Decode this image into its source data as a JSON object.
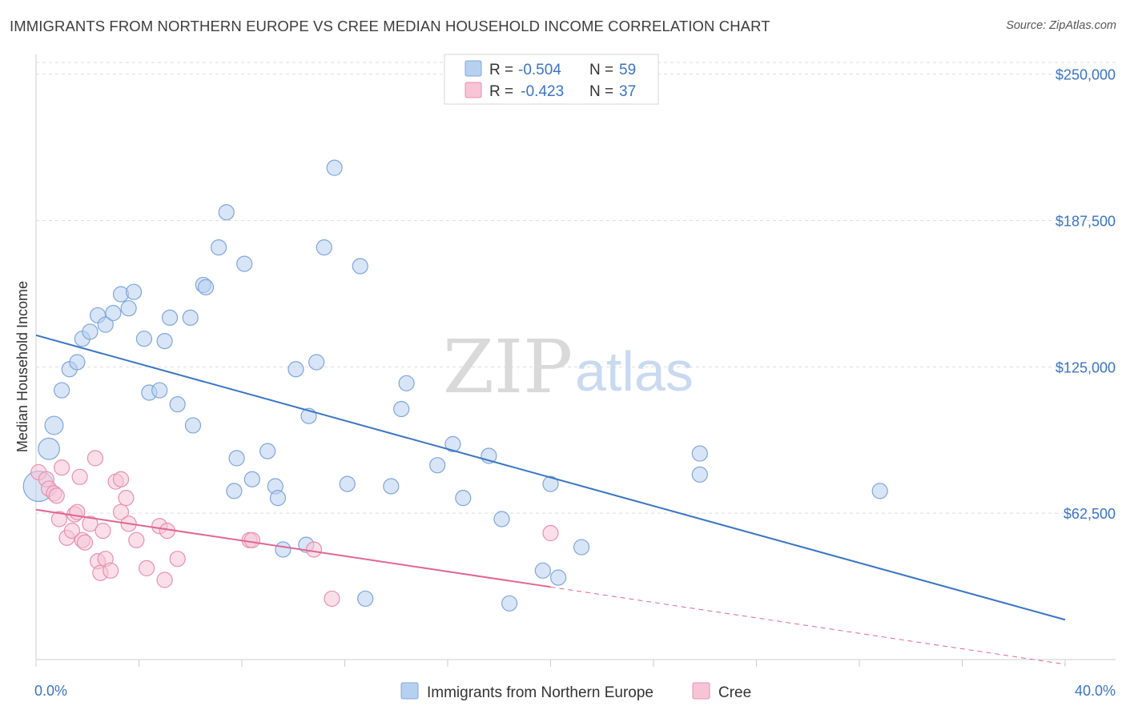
{
  "header": {
    "title": "IMMIGRANTS FROM NORTHERN EUROPE VS CREE MEDIAN HOUSEHOLD INCOME CORRELATION CHART",
    "source": "Source: ZipAtlas.com"
  },
  "watermark": {
    "zip": "ZIP",
    "atlas": "atlas"
  },
  "legend_top": {
    "rows": [
      {
        "r_label": "R = ",
        "r_value": "-0.504",
        "n_label": "N = ",
        "n_value": "59"
      },
      {
        "r_label": "R = ",
        "r_value": " -0.423",
        "n_label": "N = ",
        "n_value": "37"
      }
    ]
  },
  "legend_bottom": {
    "items": [
      "Immigrants from Northern Europe",
      "Cree"
    ]
  },
  "colors": {
    "blue": "#3a74c4",
    "blue_fill": "#b8d0f0",
    "pink": "#e06690",
    "pink_fill": "#f7c4d5",
    "grid": "#dddddd"
  },
  "chart_data": {
    "type": "scatter",
    "title": "IMMIGRANTS FROM NORTHERN EUROPE VS CREE MEDIAN HOUSEHOLD INCOME CORRELATION CHART",
    "xlabel": "",
    "ylabel": "Median Household Income",
    "xlim": [
      0,
      40
    ],
    "ylim": [
      0,
      255000
    ],
    "x_tick_labels": [
      "0.0%",
      "40.0%"
    ],
    "y_ticks": [
      62500,
      125000,
      187500,
      250000
    ],
    "y_tick_labels": [
      "$62,500",
      "$125,000",
      "$187,500",
      "$250,000"
    ],
    "grid": true,
    "series": [
      {
        "name": "Immigrants from Northern Europe",
        "r": -0.504,
        "n": 59,
        "trend": {
          "x0": 0,
          "y0": 138500,
          "x1": 40,
          "y1": 17000
        },
        "points": [
          [
            0.1,
            74000,
            2.0
          ],
          [
            0.5,
            90000,
            1.4
          ],
          [
            0.7,
            100000,
            1.2
          ],
          [
            1.0,
            115000,
            1
          ],
          [
            1.3,
            124000,
            1
          ],
          [
            1.6,
            127000,
            1
          ],
          [
            1.8,
            137000,
            1
          ],
          [
            2.1,
            140000,
            1
          ],
          [
            2.4,
            147000,
            1
          ],
          [
            2.7,
            143000,
            1
          ],
          [
            3.0,
            148000,
            1
          ],
          [
            3.3,
            156000,
            1
          ],
          [
            3.6,
            150000,
            1
          ],
          [
            3.8,
            157000,
            1
          ],
          [
            4.2,
            137000,
            1
          ],
          [
            4.4,
            114000,
            1
          ],
          [
            4.8,
            115000,
            1
          ],
          [
            5.0,
            136000,
            1
          ],
          [
            5.2,
            146000,
            1
          ],
          [
            5.5,
            109000,
            1
          ],
          [
            6.0,
            146000,
            1
          ],
          [
            6.1,
            100000,
            1
          ],
          [
            6.5,
            160000,
            1
          ],
          [
            6.6,
            159000,
            1
          ],
          [
            7.1,
            176000,
            1
          ],
          [
            7.4,
            191000,
            1
          ],
          [
            7.7,
            72000,
            1
          ],
          [
            7.8,
            86000,
            1
          ],
          [
            8.1,
            169000,
            1
          ],
          [
            8.4,
            77000,
            1
          ],
          [
            9.0,
            89000,
            1
          ],
          [
            9.3,
            74000,
            1
          ],
          [
            9.4,
            69000,
            1
          ],
          [
            9.6,
            47000,
            1
          ],
          [
            10.1,
            124000,
            1
          ],
          [
            10.5,
            49000,
            1
          ],
          [
            10.6,
            104000,
            1
          ],
          [
            10.9,
            127000,
            1
          ],
          [
            11.2,
            176000,
            1
          ],
          [
            11.6,
            210000,
            1
          ],
          [
            12.1,
            75000,
            1
          ],
          [
            12.6,
            168000,
            1
          ],
          [
            12.8,
            26000,
            1
          ],
          [
            13.8,
            74000,
            1
          ],
          [
            14.2,
            107000,
            1
          ],
          [
            14.4,
            118000,
            1
          ],
          [
            15.6,
            83000,
            1
          ],
          [
            16.2,
            92000,
            1
          ],
          [
            16.6,
            69000,
            1
          ],
          [
            17.6,
            87000,
            1
          ],
          [
            18.1,
            60000,
            1
          ],
          [
            18.4,
            24000,
            1
          ],
          [
            19.7,
            38000,
            1
          ],
          [
            20.0,
            75000,
            1
          ],
          [
            20.3,
            35000,
            1
          ],
          [
            21.2,
            48000,
            1
          ],
          [
            25.8,
            79000,
            1
          ],
          [
            25.8,
            88000,
            1
          ],
          [
            32.8,
            72000,
            1
          ]
        ]
      },
      {
        "name": "Cree",
        "r": -0.423,
        "n": 37,
        "trend": {
          "x0": 0,
          "y0": 64000,
          "x1": 20,
          "y1": 31000
        },
        "trend_dashed": {
          "x0": 20,
          "y0": 31000,
          "x1": 40,
          "y1": -2000
        },
        "points": [
          [
            0.1,
            80000,
            1
          ],
          [
            0.4,
            77000,
            1
          ],
          [
            0.5,
            73000,
            1
          ],
          [
            0.7,
            71000,
            1
          ],
          [
            0.8,
            70000,
            1
          ],
          [
            0.9,
            60000,
            1
          ],
          [
            1.0,
            82000,
            1
          ],
          [
            1.2,
            52000,
            1
          ],
          [
            1.4,
            55000,
            1
          ],
          [
            1.5,
            62000,
            1
          ],
          [
            1.6,
            63000,
            1
          ],
          [
            1.7,
            78000,
            1
          ],
          [
            1.8,
            51000,
            1
          ],
          [
            1.9,
            50000,
            1
          ],
          [
            2.1,
            58000,
            1
          ],
          [
            2.3,
            86000,
            1
          ],
          [
            2.4,
            42000,
            1
          ],
          [
            2.5,
            37000,
            1
          ],
          [
            2.6,
            55000,
            1
          ],
          [
            2.7,
            43000,
            1
          ],
          [
            2.9,
            38000,
            1
          ],
          [
            3.1,
            76000,
            1
          ],
          [
            3.3,
            63000,
            1
          ],
          [
            3.3,
            77000,
            1
          ],
          [
            3.5,
            69000,
            1
          ],
          [
            3.6,
            58000,
            1
          ],
          [
            3.9,
            51000,
            1
          ],
          [
            4.3,
            39000,
            1
          ],
          [
            4.8,
            57000,
            1
          ],
          [
            5.0,
            34000,
            1
          ],
          [
            5.1,
            55000,
            1
          ],
          [
            5.5,
            43000,
            1
          ],
          [
            8.3,
            51000,
            1
          ],
          [
            8.4,
            51000,
            1
          ],
          [
            10.8,
            47000,
            1
          ],
          [
            11.5,
            26000,
            1
          ],
          [
            20.0,
            54000,
            1
          ]
        ]
      }
    ]
  }
}
